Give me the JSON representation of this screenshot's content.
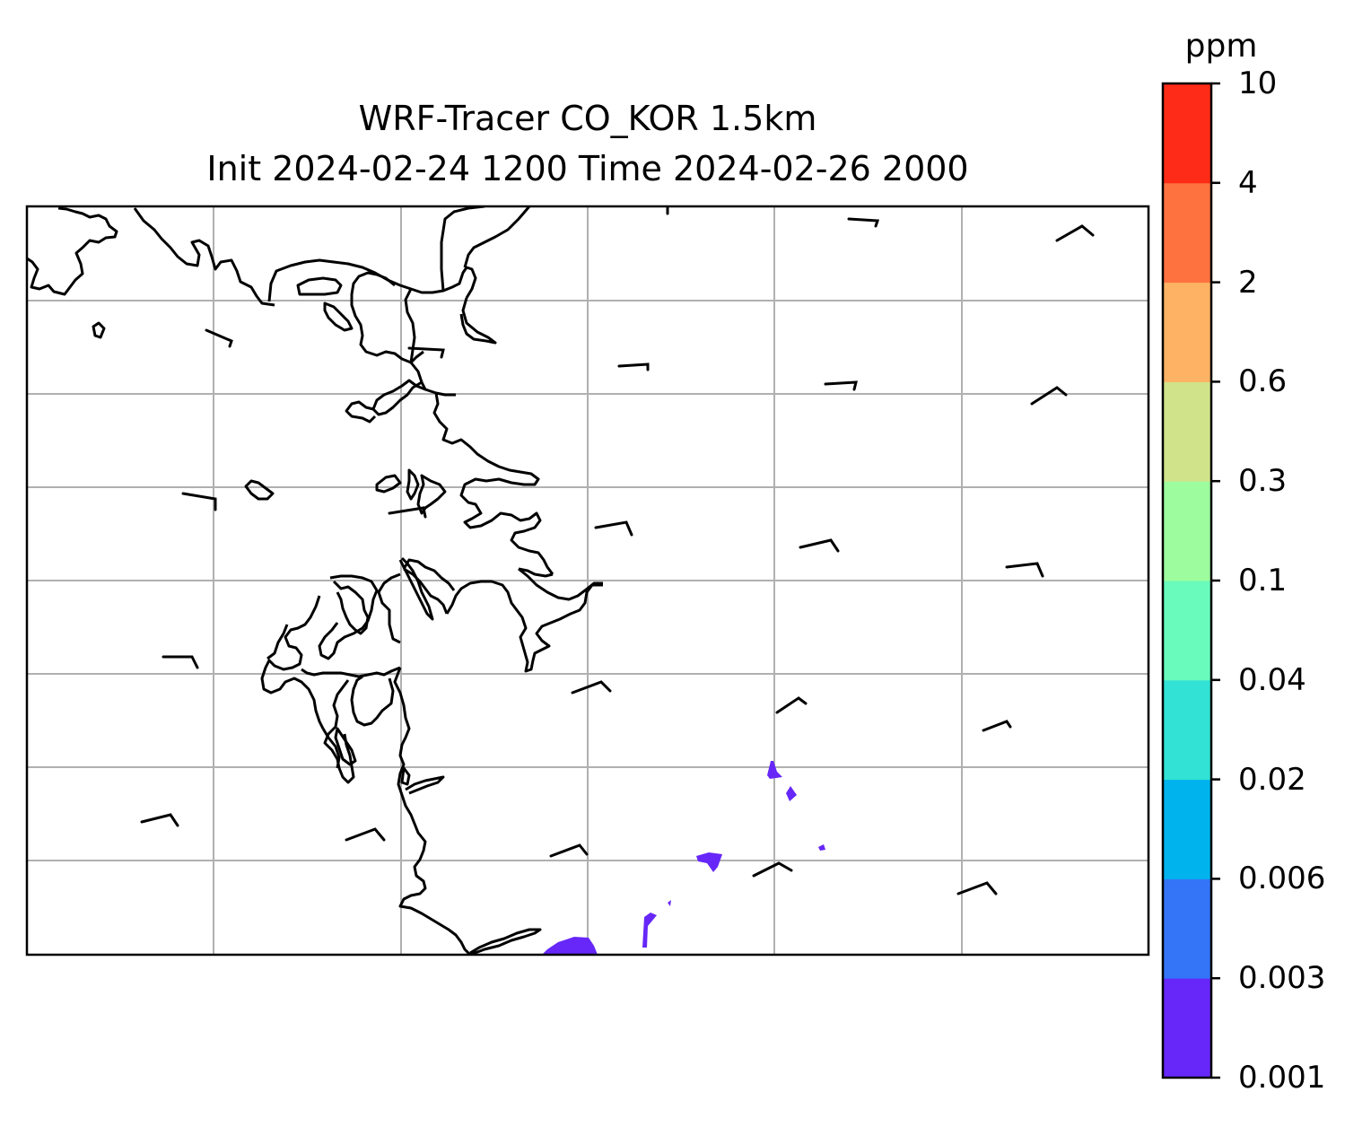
{
  "title": {
    "line1": "WRF-Tracer CO_KOR 1.5km",
    "line2": "Init 2024-02-24 1200 Time 2024-02-26 2000"
  },
  "colorbar": {
    "unit": "ppm",
    "levels": [
      "0.001",
      "0.003",
      "0.006",
      "0.02",
      "0.04",
      "0.1",
      "0.3",
      "0.6",
      "2",
      "4",
      "10"
    ],
    "colors": [
      "#6627f8",
      "#3474f7",
      "#00b3ec",
      "#32e2d4",
      "#69fbbc",
      "#9dfd9e",
      "#d0e38a",
      "#fdb264",
      "#fe7240",
      "#fe2b18"
    ]
  },
  "map": {
    "gridlines": true,
    "coastline_color": "#000000",
    "grid_color": "#b0b0b0",
    "plume_color": "#6627f8"
  }
}
